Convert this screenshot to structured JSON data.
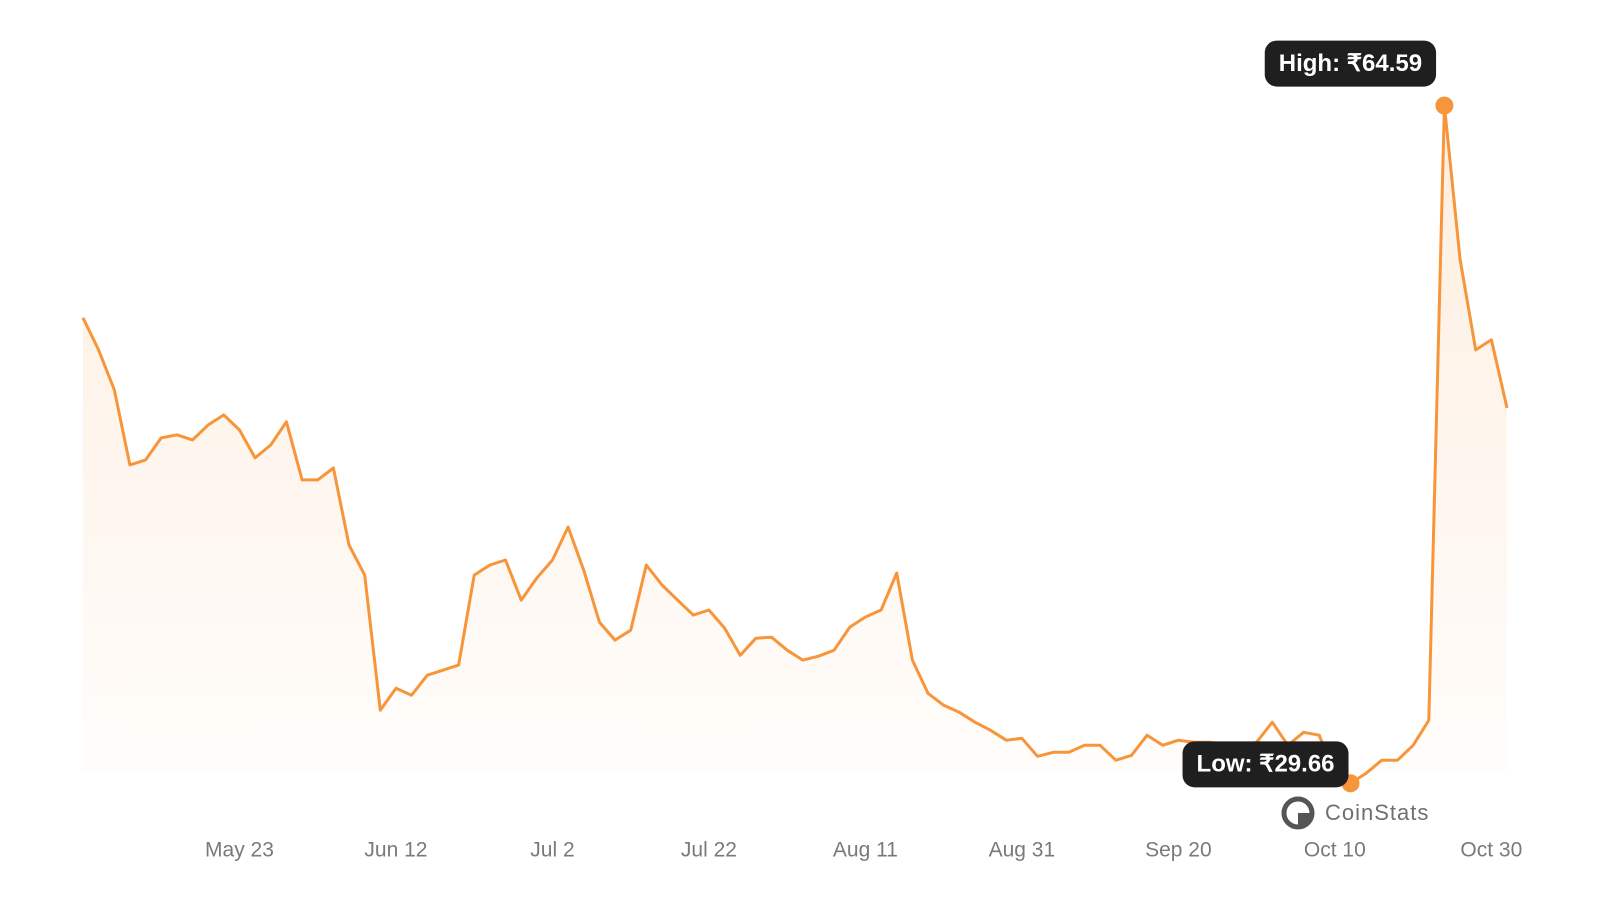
{
  "chart_data": {
    "type": "line",
    "color": "#f7953a",
    "categories": [
      null,
      null,
      null,
      null,
      null,
      null,
      null,
      null,
      null,
      null,
      "May 23",
      null,
      null,
      null,
      null,
      null,
      null,
      null,
      null,
      null,
      "Jun 12",
      null,
      null,
      null,
      null,
      null,
      null,
      null,
      null,
      null,
      "Jul 2",
      null,
      null,
      null,
      null,
      null,
      null,
      null,
      null,
      null,
      "Jul 22",
      null,
      null,
      null,
      null,
      null,
      null,
      null,
      null,
      null,
      "Aug 11",
      null,
      null,
      null,
      null,
      null,
      null,
      null,
      null,
      null,
      "Aug 31",
      null,
      null,
      null,
      null,
      null,
      null,
      null,
      null,
      null,
      "Sep 20",
      null,
      null,
      null,
      null,
      null,
      null,
      null,
      null,
      null,
      "Oct 10",
      null,
      null,
      null,
      null,
      null,
      null,
      null,
      null,
      null,
      "Oct 30",
      null
    ],
    "values": [
      53.65,
      52.0,
      49.94,
      46.07,
      46.33,
      47.46,
      47.62,
      47.36,
      48.13,
      48.65,
      47.87,
      46.43,
      47.1,
      48.29,
      45.3,
      45.3,
      45.91,
      41.94,
      40.39,
      33.43,
      34.56,
      34.2,
      35.23,
      35.49,
      35.75,
      40.39,
      40.91,
      41.17,
      39.1,
      40.24,
      41.17,
      42.87,
      40.65,
      37.97,
      37.04,
      37.55,
      40.91,
      39.88,
      39.1,
      38.33,
      38.59,
      37.66,
      36.26,
      37.14,
      37.19,
      36.52,
      36.01,
      36.21,
      36.52,
      37.71,
      38.23,
      38.59,
      40.5,
      36.01,
      34.3,
      33.68,
      33.32,
      32.81,
      32.39,
      31.88,
      31.98,
      31.05,
      31.26,
      31.26,
      31.62,
      31.62,
      30.85,
      31.1,
      32.14,
      31.62,
      31.88,
      31.78,
      31.78,
      31.62,
      31.47,
      31.78,
      32.81,
      31.62,
      32.29,
      32.14,
      30.07,
      29.66,
      30.18,
      30.85,
      30.85,
      31.62,
      32.91,
      64.59,
      56.65,
      52.0,
      52.52,
      49.01
    ],
    "ylim": [
      28.8,
      69.0
    ],
    "high": {
      "label": "High: ₹64.59",
      "value": 64.59
    },
    "low": {
      "label": "Low: ₹29.66",
      "value": 29.66
    },
    "watermark": "CoinStats"
  }
}
